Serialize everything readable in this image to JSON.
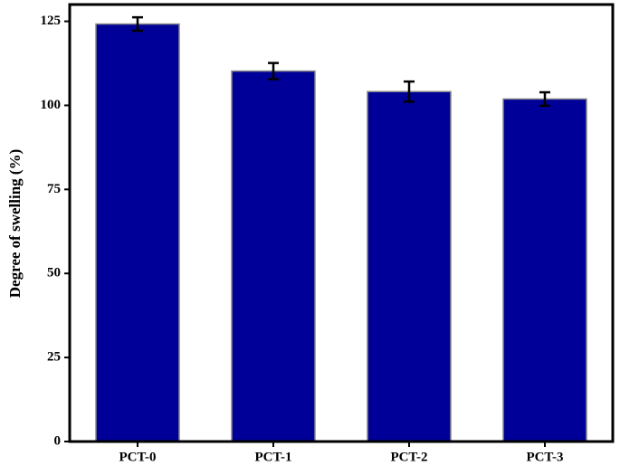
{
  "chart_data": {
    "type": "bar",
    "y_label": "Degree of swelling (%)",
    "categories": [
      "PCT-0",
      "PCT-1",
      "PCT-2",
      "PCT-3"
    ],
    "values": [
      124.2,
      110.2,
      104.1,
      101.9
    ],
    "errors": [
      2.0,
      2.4,
      3.0,
      2.0
    ],
    "color": "#000099",
    "ylim": [
      0,
      130
    ],
    "yticks": [
      0,
      25,
      50,
      75,
      100,
      125
    ],
    "grid": false
  }
}
